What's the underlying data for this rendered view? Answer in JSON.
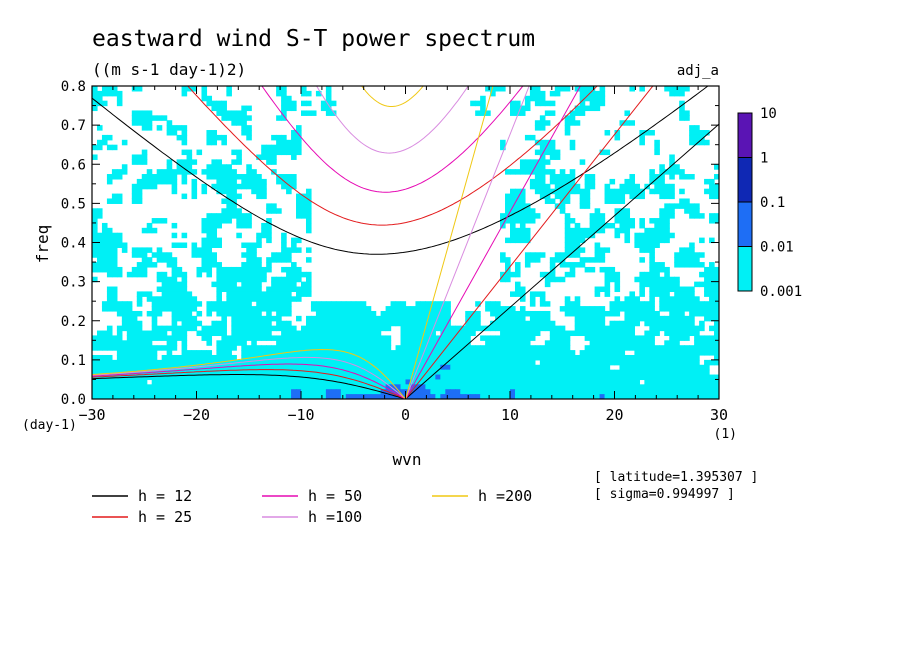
{
  "chart_data": {
    "type": "heatmap",
    "title": "eastward wind S-T power spectrum",
    "subtitle": "((m s-1 day-1)2)",
    "run_label": "adj_a",
    "xlabel": "wvn",
    "xunit": "(1)",
    "ylabel": "freq",
    "yunit": "(day-1)",
    "xlim": [
      -30,
      30
    ],
    "ylim": [
      0,
      0.8
    ],
    "xticks": [
      -30,
      -20,
      -10,
      0,
      10,
      20,
      30
    ],
    "yticks": [
      0.0,
      0.1,
      0.2,
      0.3,
      0.4,
      0.5,
      0.6,
      0.7,
      0.8
    ],
    "colorbar": {
      "levels": [
        "10",
        "1",
        "0.1",
        "0.01",
        "0.001"
      ],
      "colors": [
        "#5a14b4",
        "#0f28b4",
        "#1e6ef5",
        "#00f0f5"
      ]
    },
    "series": [
      {
        "name": "h = 12",
        "h": 12,
        "color": "#000000"
      },
      {
        "name": "h = 25",
        "h": 25,
        "color": "#e31a1c"
      },
      {
        "name": "h = 50",
        "h": 50,
        "color": "#e60ab4"
      },
      {
        "name": "h =100",
        "h": 100,
        "color": "#d98ce0"
      },
      {
        "name": "h =200",
        "h": 200,
        "color": "#f0c814"
      }
    ],
    "info": [
      "[ latitude=1.395307 ]",
      "[ sigma=0.994997 ]"
    ]
  }
}
